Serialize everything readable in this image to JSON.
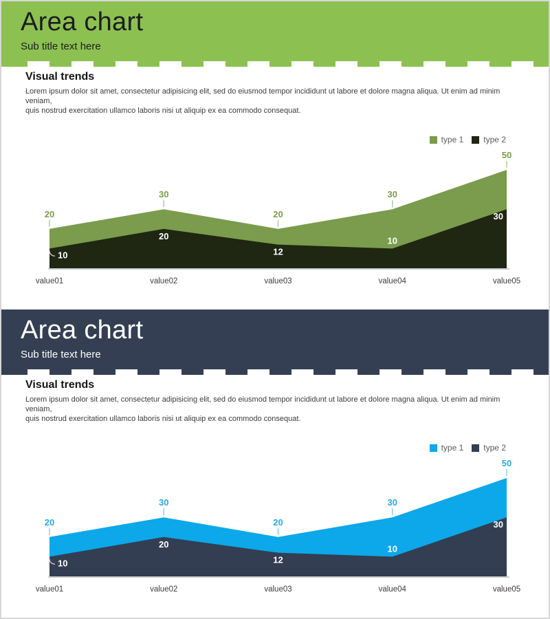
{
  "panels": [
    {
      "header": {
        "title": "Area chart",
        "subtitle": "Sub title text here"
      },
      "section_heading": "Visual trends",
      "paragraph_lines": [
        "Lorem ipsum dolor sit amet, consectetur adipisicing elit, sed do eiusmod tempor incididunt ut labore et dolore magna aliqua. Ut enim ad minim veniam,",
        "quis nostrud exercitation ullamco laboris nisi ut aliquip ex ea commodo consequat."
      ],
      "theme": {
        "header_bg": "#8CC152",
        "header_text": "#1D1D1B",
        "series1": "#7A9C4C",
        "series2": "#1F2612",
        "value_label": "#7A9C4C",
        "callout": "#CFCFCF"
      }
    },
    {
      "header": {
        "title": "Area chart",
        "subtitle": "Sub title text here"
      },
      "section_heading": "Visual trends",
      "paragraph_lines": [
        "Lorem ipsum dolor sit amet, consectetur adipisicing elit, sed do eiusmod tempor incididunt ut labore et dolore magna aliqua. Ut enim ad minim veniam,",
        "quis nostrud exercitation ullamco laboris nisi ut aliquip ex ea commodo consequat."
      ],
      "theme": {
        "header_bg": "#343F53",
        "header_text": "#FFFFFF",
        "series1": "#0CA8E9",
        "series2": "#333E52",
        "value_label": "#29A9E2",
        "callout": "#CFCFCF"
      }
    }
  ],
  "chart_data": [
    {
      "type": "area",
      "title": "Visual trends",
      "categories": [
        "value01",
        "value02",
        "value03",
        "value04",
        "value05"
      ],
      "series": [
        {
          "name": "type 1",
          "values": [
            20,
            30,
            20,
            30,
            50
          ]
        },
        {
          "name": "type 2",
          "values": [
            10,
            20,
            12,
            10,
            30
          ]
        }
      ],
      "ylim": [
        0,
        50
      ],
      "grid": false,
      "legend_position": "top-right",
      "note": "type 2 area drawn over type 1, both baselined at 0; value labels shown at every point"
    },
    {
      "type": "area",
      "title": "Visual trends",
      "categories": [
        "value01",
        "value02",
        "value03",
        "value04",
        "value05"
      ],
      "series": [
        {
          "name": "type 1",
          "values": [
            20,
            30,
            20,
            30,
            50
          ]
        },
        {
          "name": "type 2",
          "values": [
            10,
            20,
            12,
            10,
            30
          ]
        }
      ],
      "ylim": [
        0,
        50
      ],
      "grid": false,
      "legend_position": "top-right",
      "note": "type 2 area drawn over type 1, both baselined at 0; value labels shown at every point"
    }
  ]
}
